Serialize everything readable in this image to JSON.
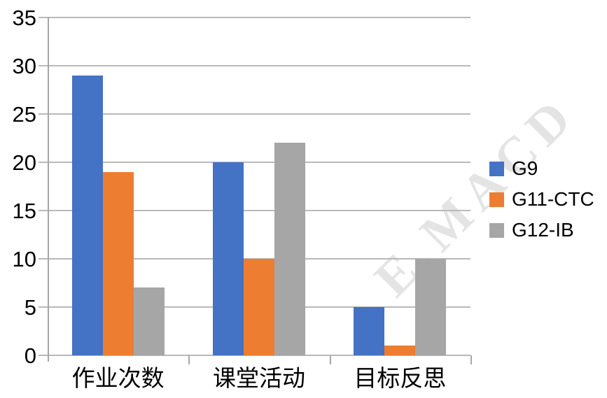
{
  "watermark": {
    "text": "E.MACD",
    "color": "#cfcfcf"
  },
  "chart_data": {
    "type": "bar",
    "title": "",
    "xlabel": "",
    "ylabel": "",
    "categories": [
      "作业次数",
      "课堂活动",
      "目标反思"
    ],
    "series": [
      {
        "name": "G9",
        "color": "#4472C4",
        "values": [
          29,
          20,
          5
        ]
      },
      {
        "name": "G11-CTC",
        "color": "#ED7D31",
        "values": [
          19,
          10,
          1
        ]
      },
      {
        "name": "G12-IB",
        "color": "#A6A6A6",
        "values": [
          7,
          22,
          10
        ]
      }
    ],
    "ylim": [
      0,
      35
    ],
    "yticks": [
      0,
      5,
      10,
      15,
      20,
      25,
      30,
      35
    ],
    "grid": true,
    "legend_position": "right"
  }
}
